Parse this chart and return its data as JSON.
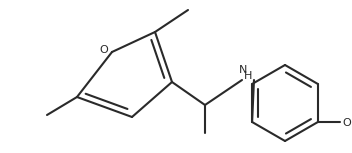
{
  "bg_color": "#ffffff",
  "line_color": "#2a2a2a",
  "line_width": 1.5,
  "figsize": [
    3.52,
    1.53
  ],
  "dpi": 100,
  "xlim": [
    0,
    352
  ],
  "ylim": [
    0,
    153
  ]
}
